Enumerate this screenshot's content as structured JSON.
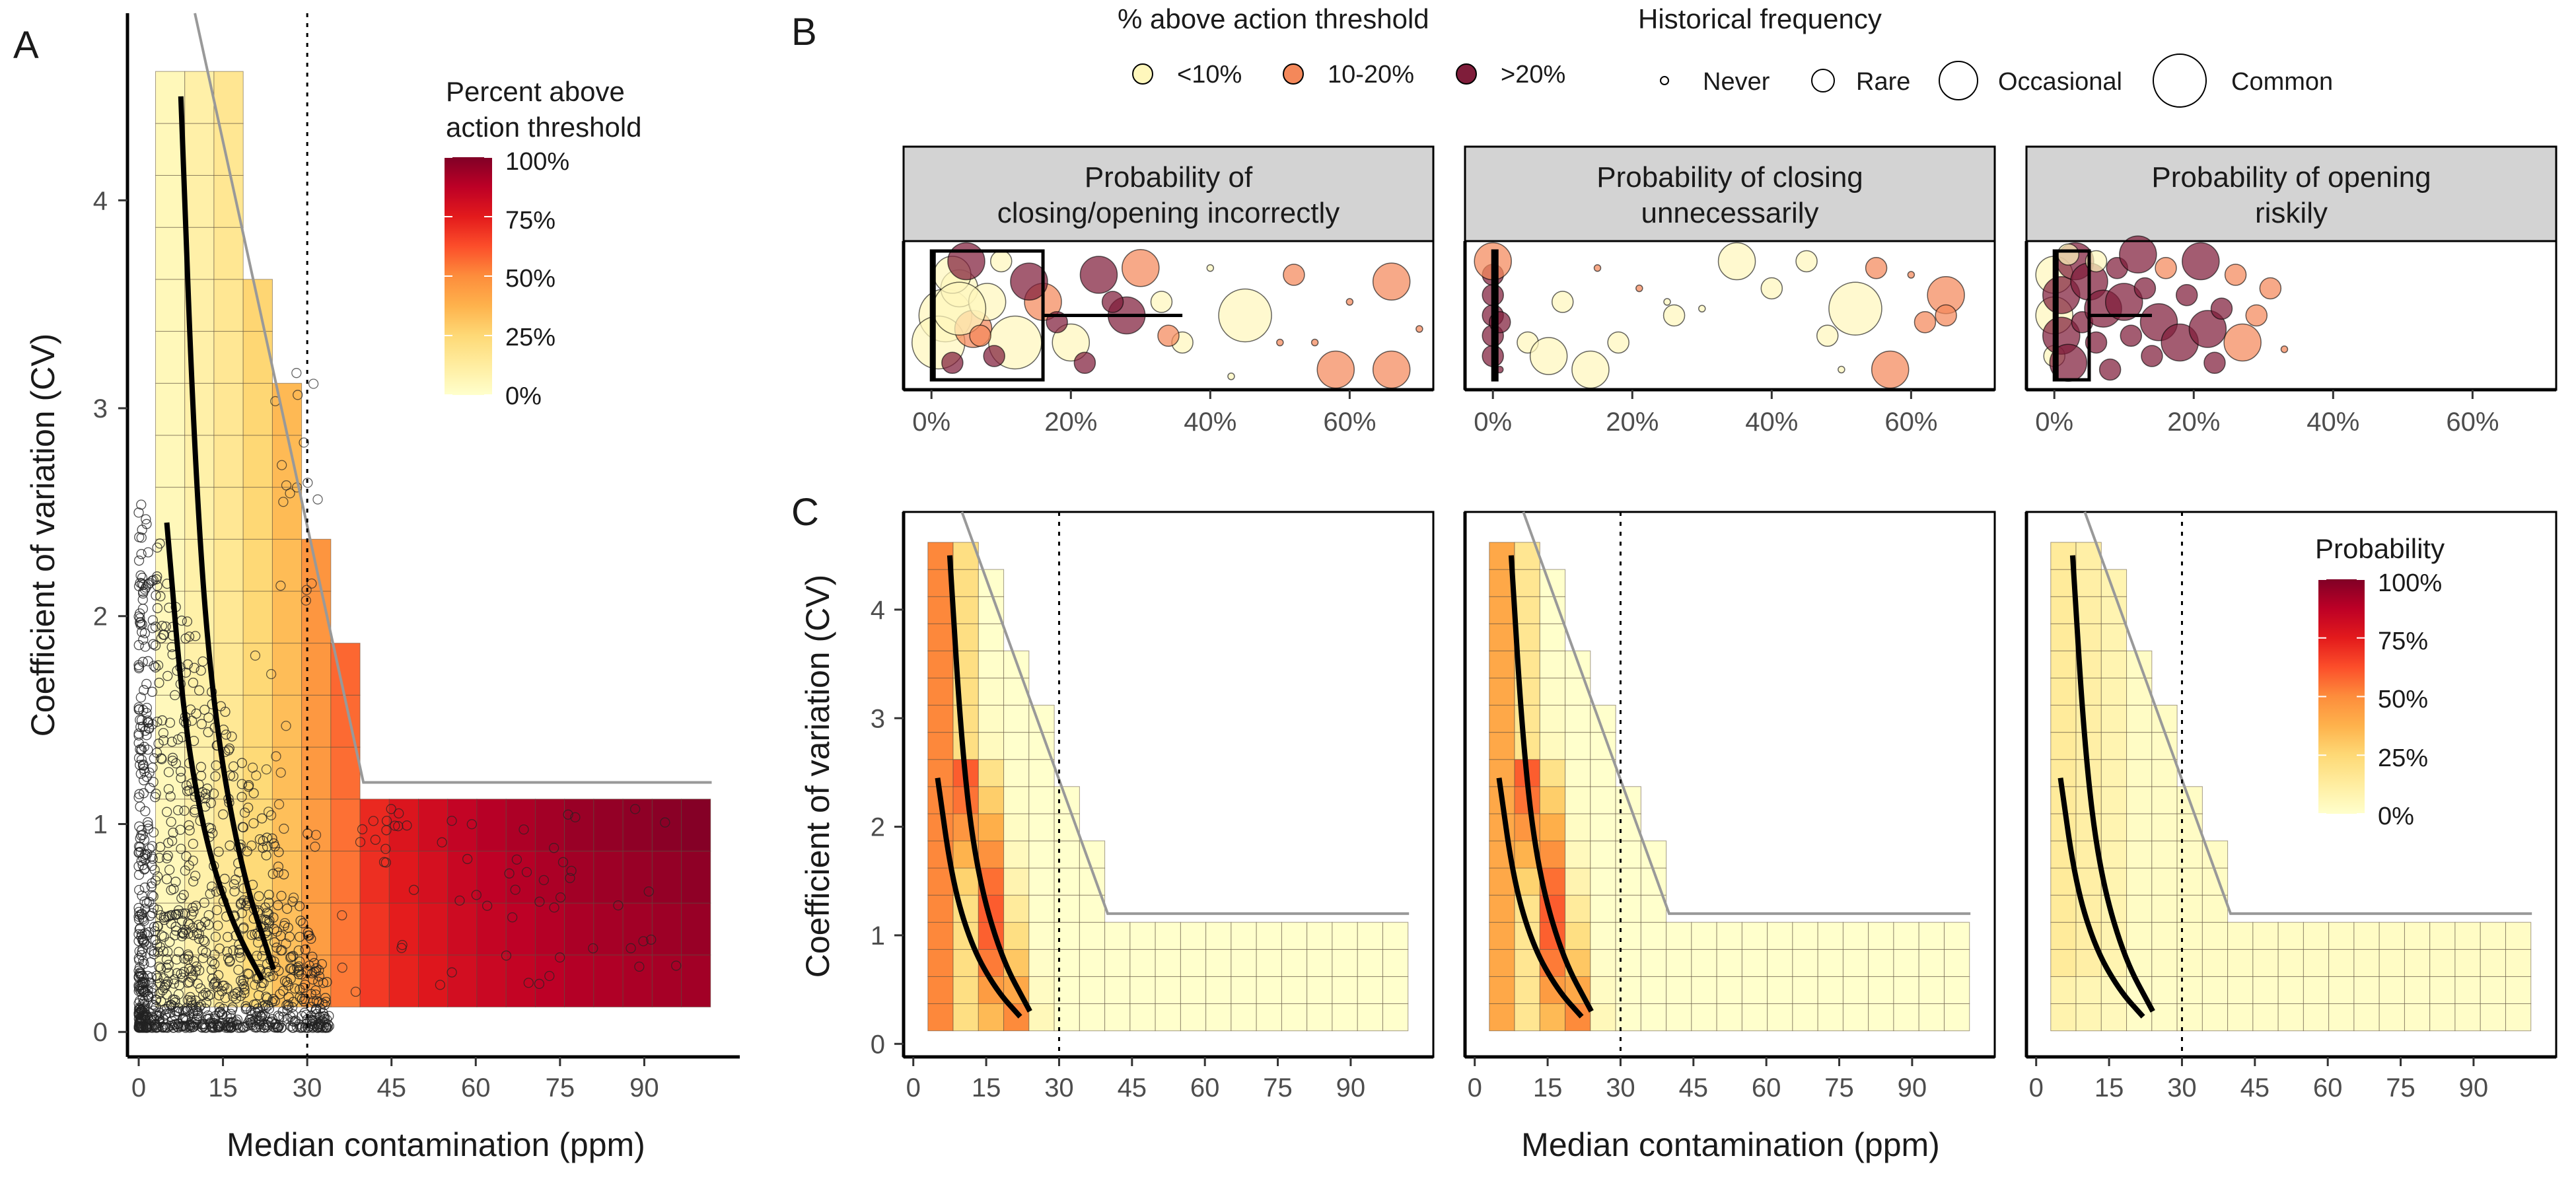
{
  "figure": {
    "panel_labels": [
      "A",
      "B",
      "C"
    ],
    "colors": {
      "ramp": [
        "#ffffcc",
        "#ffeda0",
        "#fed976",
        "#feb24c",
        "#fd8d3c",
        "#fc4e2a",
        "#e31a1c",
        "#bd0026",
        "#800026"
      ],
      "low_bubble": "#fff7bc",
      "mid_bubble": "#f4885a",
      "high_bubble": "#7f1d3a",
      "envelope_line": "#999999",
      "strip_fill": "#d3d3d3"
    }
  },
  "panelA": {
    "xlabel": "Median contamination (ppm)",
    "ylabel": "Coefficient of variation (CV)",
    "legend_title_1": "Percent above",
    "legend_title_2": "action threshold",
    "legend_ticks": [
      "100%",
      "75%",
      "50%",
      "25%",
      "0%"
    ]
  },
  "panelB": {
    "size_legend_title": "% above action threshold",
    "color_items": [
      "<10%",
      "10-20%",
      ">20%"
    ],
    "freq_title": "Historical frequency",
    "freq_items": [
      "Never",
      "Rare",
      "Occasional",
      "Common"
    ],
    "facets": [
      {
        "title_1": "Probability of",
        "title_2": "closing/opening incorrectly"
      },
      {
        "title_1": "Probability of closing",
        "title_2": "unnecessarily"
      },
      {
        "title_1": "Probability of opening",
        "title_2": "riskily"
      }
    ]
  },
  "panelC": {
    "xlabel": "Median contamination (ppm)",
    "ylabel": "Coefficient of variation (CV)",
    "legend_title": "Probability",
    "legend_ticks": [
      "100%",
      "75%",
      "50%",
      "25%",
      "0%"
    ]
  },
  "chart_data": [
    {
      "id": "A",
      "type": "heatmap",
      "xlabel": "Median contamination (ppm)",
      "ylabel": "Coefficient of variation (CV)",
      "xlim": [
        -2,
        107
      ],
      "ylim": [
        -0.12,
        4.9
      ],
      "x_ticks": [
        0,
        15,
        30,
        45,
        60,
        75,
        90
      ],
      "y_ticks": [
        0,
        1,
        2,
        3,
        4
      ],
      "threshold_x": 30,
      "grid_x_start": 3,
      "grid_x_step": 5.2,
      "grid_y_start": 0.12,
      "grid_y_step": 0.25,
      "envelope": [
        [
          10,
          4.9
        ],
        [
          40,
          1.2
        ],
        [
          102,
          1.2
        ]
      ],
      "curves": [
        [
          [
            7.5,
            4.5
          ],
          [
            10,
            2.7
          ],
          [
            13,
            1.6
          ],
          [
            18,
            0.8
          ],
          [
            24,
            0.3
          ]
        ],
        [
          [
            5,
            2.45
          ],
          [
            8,
            1.5
          ],
          [
            12,
            0.9
          ],
          [
            17,
            0.5
          ],
          [
            22,
            0.25
          ]
        ]
      ],
      "columns": [
        {
          "x": 3.0,
          "cv_max": 4.62,
          "pct_above": 0.05
        },
        {
          "x": 8.2,
          "cv_max": 4.62,
          "pct_above": 0.1
        },
        {
          "x": 13.4,
          "cv_max": 4.62,
          "pct_above": 0.16
        },
        {
          "x": 18.6,
          "cv_max": 3.62,
          "pct_above": 0.25
        },
        {
          "x": 23.8,
          "cv_max": 3.12,
          "pct_above": 0.34
        },
        {
          "x": 29.0,
          "cv_max": 2.37,
          "pct_above": 0.46
        },
        {
          "x": 34.2,
          "cv_max": 1.87,
          "pct_above": 0.56
        },
        {
          "x": 39.4,
          "cv_max": 1.12,
          "pct_above": 0.7
        },
        {
          "x": 44.6,
          "cv_max": 1.12,
          "pct_above": 0.76
        },
        {
          "x": 49.8,
          "cv_max": 1.12,
          "pct_above": 0.8
        },
        {
          "x": 55.0,
          "cv_max": 1.12,
          "pct_above": 0.84
        },
        {
          "x": 60.2,
          "cv_max": 1.12,
          "pct_above": 0.87
        },
        {
          "x": 65.4,
          "cv_max": 1.12,
          "pct_above": 0.89
        },
        {
          "x": 70.6,
          "cv_max": 1.12,
          "pct_above": 0.91
        },
        {
          "x": 75.8,
          "cv_max": 1.12,
          "pct_above": 0.93
        },
        {
          "x": 81.0,
          "cv_max": 1.12,
          "pct_above": 0.94
        },
        {
          "x": 86.2,
          "cv_max": 1.12,
          "pct_above": 0.95
        },
        {
          "x": 91.4,
          "cv_max": 1.12,
          "pct_above": 0.96
        },
        {
          "x": 96.6,
          "cv_max": 1.12,
          "pct_above": 0.97
        }
      ],
      "scatter_points_shown": "~1200 historical observations (hollow circles)"
    },
    {
      "id": "B",
      "type": "scatter",
      "facets": [
        "closing/opening incorrectly",
        "closing unnecessarily",
        "opening riskily"
      ],
      "x_ticks": [
        "0%",
        "20%",
        "40%",
        "60%"
      ],
      "xlim": [
        -4,
        72
      ],
      "bubbles": [
        [
          [
            2,
            0.5,
            3,
            0
          ],
          [
            4,
            0.7,
            2,
            0
          ],
          [
            1,
            0.3,
            3,
            0
          ],
          [
            6,
            0.4,
            2,
            1
          ],
          [
            3,
            0.8,
            2,
            0
          ],
          [
            8,
            0.6,
            2,
            0
          ],
          [
            12,
            0.3,
            3,
            0
          ],
          [
            16,
            0.6,
            2,
            1
          ],
          [
            20,
            0.3,
            2,
            0
          ],
          [
            24,
            0.8,
            2,
            2
          ],
          [
            28,
            0.5,
            2,
            2
          ],
          [
            33,
            0.6,
            1,
            0
          ],
          [
            36,
            0.3,
            1,
            0
          ],
          [
            40,
            0.85,
            0,
            0
          ],
          [
            45,
            0.5,
            3,
            0
          ],
          [
            50,
            0.3,
            0,
            1
          ],
          [
            52,
            0.8,
            1,
            1
          ],
          [
            58,
            0.1,
            2,
            1
          ],
          [
            60,
            0.6,
            0,
            1
          ],
          [
            66,
            0.1,
            2,
            1
          ],
          [
            66,
            0.75,
            2,
            1
          ],
          [
            70,
            0.4,
            0,
            1
          ],
          [
            3,
            0.15,
            1,
            2
          ],
          [
            5,
            0.9,
            2,
            2
          ],
          [
            9,
            0.2,
            1,
            2
          ],
          [
            14,
            0.75,
            2,
            2
          ],
          [
            18,
            0.45,
            1,
            2
          ],
          [
            22,
            0.15,
            1,
            2
          ],
          [
            26,
            0.6,
            1,
            2
          ],
          [
            30,
            0.85,
            2,
            1
          ],
          [
            4,
            0.55,
            3,
            0
          ],
          [
            10,
            0.9,
            1,
            0
          ],
          [
            7,
            0.35,
            1,
            1
          ],
          [
            55,
            0.3,
            0,
            1
          ],
          [
            43,
            0.05,
            0,
            0
          ],
          [
            34,
            0.35,
            1,
            1
          ]
        ],
        [
          [
            0,
            0.2,
            1,
            2
          ],
          [
            0,
            0.5,
            1,
            2
          ],
          [
            0,
            0.8,
            1,
            2
          ],
          [
            0,
            0.35,
            1,
            2
          ],
          [
            0,
            0.65,
            1,
            2
          ],
          [
            1,
            0.1,
            0,
            2
          ],
          [
            0,
            0.9,
            2,
            1
          ],
          [
            1,
            0.45,
            1,
            2
          ],
          [
            5,
            0.3,
            1,
            0
          ],
          [
            8,
            0.2,
            2,
            0
          ],
          [
            14,
            0.1,
            2,
            0
          ],
          [
            10,
            0.6,
            1,
            0
          ],
          [
            18,
            0.3,
            1,
            0
          ],
          [
            25,
            0.6,
            0,
            0
          ],
          [
            26,
            0.5,
            1,
            0
          ],
          [
            30,
            0.55,
            0,
            0
          ],
          [
            35,
            0.9,
            2,
            0
          ],
          [
            40,
            0.7,
            1,
            0
          ],
          [
            45,
            0.9,
            1,
            0
          ],
          [
            50,
            0.1,
            0,
            0
          ],
          [
            52,
            0.55,
            3,
            0
          ],
          [
            55,
            0.85,
            1,
            1
          ],
          [
            57,
            0.1,
            2,
            1
          ],
          [
            60,
            0.8,
            0,
            1
          ],
          [
            62,
            0.45,
            1,
            1
          ],
          [
            65,
            0.65,
            2,
            1
          ],
          [
            65,
            0.5,
            1,
            1
          ],
          [
            48,
            0.35,
            1,
            0
          ],
          [
            15,
            0.85,
            0,
            1
          ],
          [
            21,
            0.7,
            0,
            1
          ]
        ],
        [
          [
            0,
            0.5,
            2,
            0
          ],
          [
            0,
            0.8,
            2,
            0
          ],
          [
            0,
            0.2,
            1,
            0
          ],
          [
            1,
            0.35,
            2,
            2
          ],
          [
            1,
            0.65,
            2,
            2
          ],
          [
            2,
            0.15,
            2,
            2
          ],
          [
            3,
            0.9,
            2,
            2
          ],
          [
            4,
            0.45,
            1,
            2
          ],
          [
            5,
            0.75,
            2,
            2
          ],
          [
            6,
            0.3,
            1,
            2
          ],
          [
            7,
            0.55,
            2,
            2
          ],
          [
            8,
            0.1,
            1,
            2
          ],
          [
            9,
            0.85,
            1,
            2
          ],
          [
            10,
            0.6,
            2,
            2
          ],
          [
            11,
            0.35,
            1,
            2
          ],
          [
            12,
            0.95,
            2,
            2
          ],
          [
            13,
            0.7,
            1,
            2
          ],
          [
            14,
            0.2,
            1,
            2
          ],
          [
            15,
            0.45,
            2,
            2
          ],
          [
            16,
            0.85,
            1,
            1
          ],
          [
            18,
            0.3,
            2,
            2
          ],
          [
            19,
            0.65,
            1,
            2
          ],
          [
            21,
            0.9,
            2,
            2
          ],
          [
            22,
            0.4,
            2,
            2
          ],
          [
            23,
            0.15,
            1,
            2
          ],
          [
            24,
            0.55,
            1,
            2
          ],
          [
            26,
            0.8,
            1,
            1
          ],
          [
            27,
            0.3,
            2,
            1
          ],
          [
            29,
            0.5,
            1,
            1
          ],
          [
            31,
            0.7,
            1,
            1
          ],
          [
            33,
            0.25,
            0,
            1
          ],
          [
            6,
            0.9,
            1,
            0
          ],
          [
            2,
            0.95,
            1,
            0
          ]
        ]
      ],
      "summary_boxes": [
        {
          "q1": 0,
          "q3": 16,
          "whisker": 36,
          "median_y": 0.5
        },
        {
          "q1": 0,
          "q3": 0.5,
          "whisker": 0.5,
          "median_y": 0.5
        },
        {
          "q1": 0,
          "q3": 5,
          "whisker": 14,
          "median_y": 0.5
        }
      ]
    },
    {
      "id": "C",
      "type": "heatmap",
      "facets": [
        "closing/opening incorrectly",
        "closing unnecessarily",
        "opening riskily"
      ],
      "xlabel": "Median contamination (ppm)",
      "ylabel": "Coefficient of variation (CV)",
      "xlim": [
        -2,
        107
      ],
      "ylim": [
        -0.12,
        4.9
      ],
      "x_ticks": [
        0,
        15,
        30,
        45,
        60,
        75,
        90
      ],
      "y_ticks": [
        0,
        1,
        2,
        3,
        4
      ],
      "threshold_x": 30,
      "envelope": [
        [
          10,
          4.9
        ],
        [
          40,
          1.2
        ],
        [
          102,
          1.2
        ]
      ],
      "grid_x_start": 3,
      "grid_x_step": 5.2,
      "grid_y_start": 0.12,
      "grid_y_step": 0.25,
      "col_heights": [
        4.62,
        4.62,
        4.37,
        3.62,
        3.12,
        2.37,
        1.87,
        1.12,
        1.12,
        1.12,
        1.12,
        1.12,
        1.12,
        1.12,
        1.12,
        1.12,
        1.12,
        1.12,
        1.12
      ],
      "probability_max": [
        0.6,
        0.6,
        0.4
      ],
      "curves": [
        [
          [
            7.5,
            4.5
          ],
          [
            10,
            2.7
          ],
          [
            13,
            1.6
          ],
          [
            18,
            0.8
          ],
          [
            24,
            0.3
          ]
        ],
        [
          [
            5,
            2.45
          ],
          [
            8,
            1.5
          ],
          [
            12,
            0.9
          ],
          [
            17,
            0.5
          ],
          [
            22,
            0.25
          ]
        ]
      ]
    }
  ]
}
